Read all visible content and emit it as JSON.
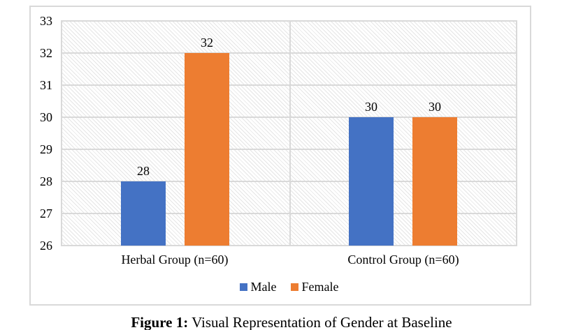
{
  "caption": {
    "prefix": "Figure 1:",
    "text": " Visual Representation of Gender at Baseline"
  },
  "chart_data": {
    "type": "bar",
    "title": "",
    "categories": [
      "Herbal Group (n=60)",
      "Control Group (n=60)"
    ],
    "series": [
      {
        "name": "Male",
        "color": "#4472C4",
        "values": [
          28,
          30
        ]
      },
      {
        "name": "Female",
        "color": "#ED7D31",
        "values": [
          32,
          30
        ]
      }
    ],
    "yticks": [
      33,
      32,
      31,
      30,
      29,
      28,
      27,
      26
    ],
    "ylim": [
      26,
      33
    ],
    "grid": true,
    "data_labels": [
      [
        "28",
        "32"
      ],
      [
        "30",
        "30"
      ]
    ],
    "legend_position": "bottom",
    "plot_pattern": "light-downward-diagonal-hatch",
    "colors": {
      "gridline": "#D9D9D9",
      "frame_border": "#D9D9D9",
      "hatch_line": "#E5E5E5",
      "text": "#000000",
      "background": "#FFFFFF"
    }
  }
}
